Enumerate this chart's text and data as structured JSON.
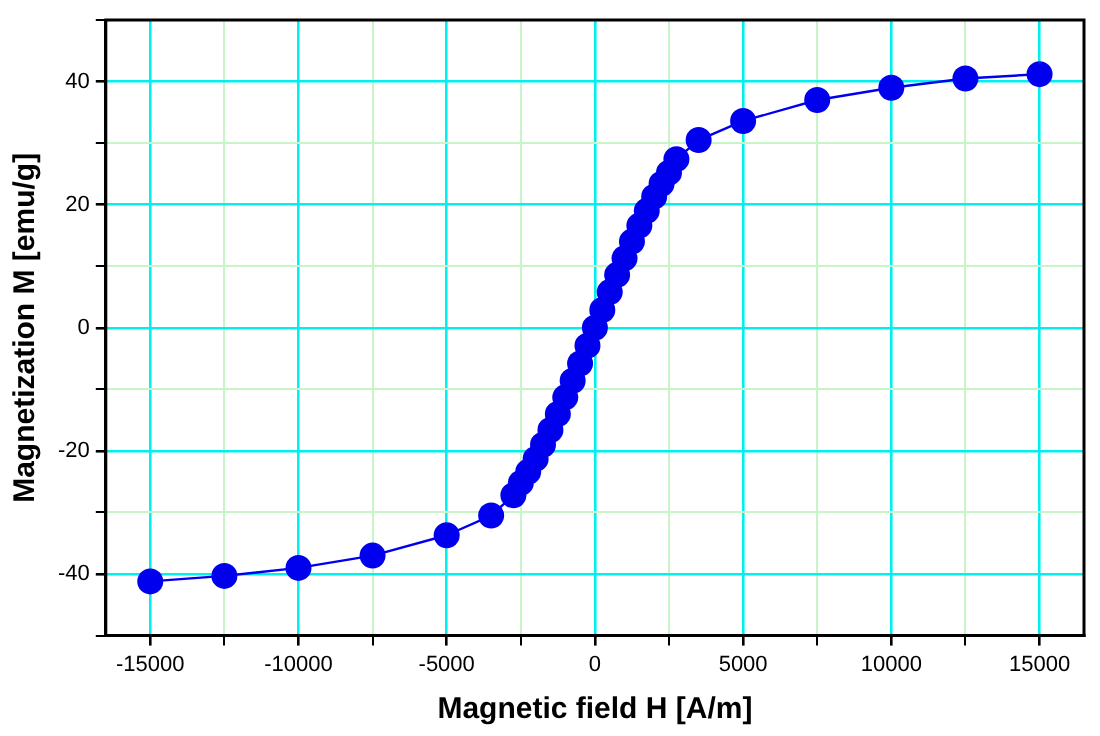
{
  "chart_data": {
    "type": "line",
    "xlabel": "Magnetic field H [A/m]",
    "ylabel": "Magnetization M [emu/g]",
    "x": [
      -15000,
      -12500,
      -10000,
      -7500,
      -5000,
      -3500,
      -2750,
      -2500,
      -2250,
      -2000,
      -1750,
      -1500,
      -1250,
      -1000,
      -750,
      -500,
      -250,
      0,
      250,
      500,
      750,
      1000,
      1250,
      1500,
      1750,
      2000,
      2250,
      2500,
      2750,
      3500,
      5000,
      7500,
      10000,
      12500,
      15000
    ],
    "series": [
      {
        "color": "#0000ee",
        "values": [
          -41.2,
          -40.3,
          -39,
          -37,
          -33.7,
          -30.5,
          -27.2,
          -25.2,
          -23.4,
          -21.3,
          -19,
          -16.6,
          -14,
          -11.3,
          -8.6,
          -5.8,
          -2.9,
          0,
          2.9,
          5.8,
          8.6,
          11.3,
          14,
          16.6,
          19,
          21.3,
          23.4,
          25.2,
          27.4,
          30.5,
          33.6,
          37,
          39,
          40.5,
          41.2
        ]
      }
    ],
    "marker": "circle",
    "line_style": "solid",
    "grid": true,
    "legend": false,
    "xlim": [
      -16500,
      16500
    ],
    "xticks": [
      -15000,
      {
        "value": -12500,
        "label": null
      },
      -10000,
      {
        "value": -7500,
        "label": null
      },
      -5000,
      {
        "value": -2500,
        "label": null
      },
      0,
      {
        "value": 2500,
        "label": null
      },
      5000,
      {
        "value": 7500,
        "label": null
      },
      10000,
      {
        "value": 12500,
        "label": null
      },
      15000
    ],
    "ylim": [
      -50,
      50
    ],
    "yticks": [
      {
        "value": -50,
        "label": null
      },
      -40,
      {
        "value": -30,
        "label": null
      },
      -20,
      {
        "value": -10,
        "label": null
      },
      0,
      {
        "value": 10,
        "label": null
      },
      20,
      {
        "value": 30,
        "label": null
      },
      40,
      {
        "value": 50,
        "label": null
      }
    ]
  }
}
